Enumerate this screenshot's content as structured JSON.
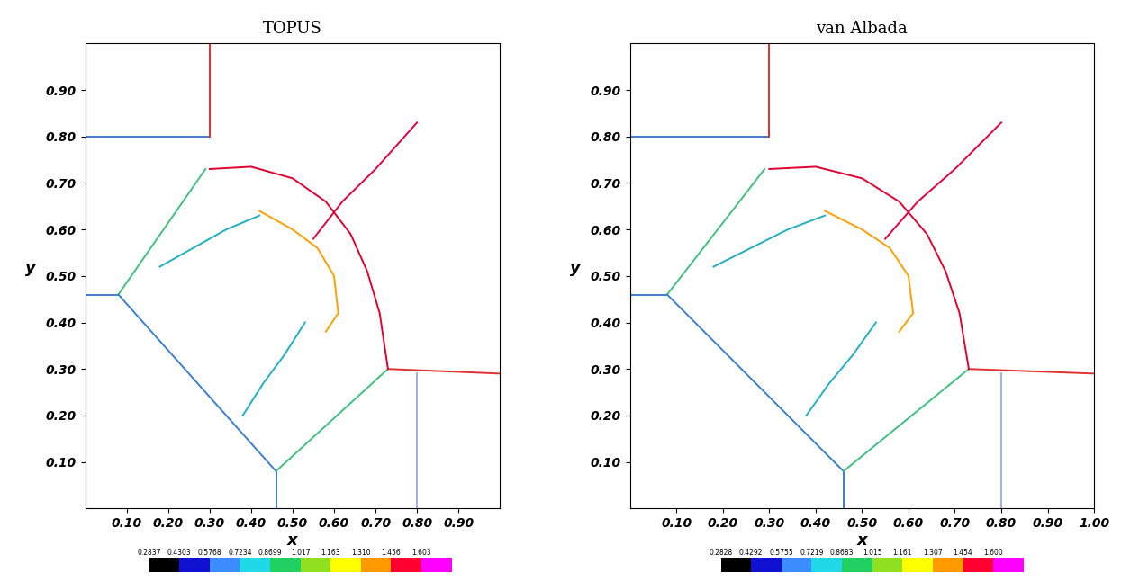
{
  "chart_data": [
    {
      "type": "contour",
      "title": "TOPUS",
      "x_label": "x",
      "y_label": "y",
      "xlim": [
        0,
        1
      ],
      "ylim": [
        0,
        1
      ],
      "xticks": [
        {
          "value": 0.1,
          "label": "0.10"
        },
        {
          "value": 0.2,
          "label": "0.20"
        },
        {
          "value": 0.3,
          "label": "0.30"
        },
        {
          "value": 0.4,
          "label": "0.40"
        },
        {
          "value": 0.5,
          "label": "0.50"
        },
        {
          "value": 0.6,
          "label": "0.60"
        },
        {
          "value": 0.7,
          "label": "0.70"
        },
        {
          "value": 0.8,
          "label": "0.80"
        },
        {
          "value": 0.9,
          "label": "0.90"
        }
      ],
      "yticks": [
        {
          "value": 0.1,
          "label": "0.10"
        },
        {
          "value": 0.2,
          "label": "0.20"
        },
        {
          "value": 0.3,
          "label": "0.30"
        },
        {
          "value": 0.4,
          "label": "0.40"
        },
        {
          "value": 0.5,
          "label": "0.50"
        },
        {
          "value": 0.6,
          "label": "0.60"
        },
        {
          "value": 0.7,
          "label": "0.70"
        },
        {
          "value": 0.8,
          "label": "0.80"
        },
        {
          "value": 0.9,
          "label": "0.90"
        }
      ],
      "colorbar_lim": [
        0.2837,
        1.7496
      ],
      "colorbar_ticks": [
        {
          "value": 0.2837,
          "label": "0.2837"
        },
        {
          "value": 0.4303,
          "label": "0.4303"
        },
        {
          "value": 0.5768,
          "label": "0.5768"
        },
        {
          "value": 0.7234,
          "label": "0.7234"
        },
        {
          "value": 0.8699,
          "label": "0.8699"
        },
        {
          "value": 1.017,
          "label": "1.017"
        },
        {
          "value": 1.163,
          "label": "1.163"
        },
        {
          "value": 1.31,
          "label": "1.310"
        },
        {
          "value": 1.456,
          "label": "1.456"
        },
        {
          "value": 1.603,
          "label": "1.603"
        }
      ],
      "colors": [
        "#000000",
        "#1010d0",
        "#3a8cff",
        "#20d8e8",
        "#20d060",
        "#90e020",
        "#ffff00",
        "#ff9900",
        "#ff0030",
        "#ff00ff"
      ],
      "lines": [
        {
          "x": [
            0.0,
            0.3
          ],
          "y": [
            0.8,
            0.8
          ],
          "color": "#3a7fd0"
        },
        {
          "x": [
            0.3,
            0.3
          ],
          "y": [
            0.8,
            1.0
          ],
          "color": "#e03030"
        },
        {
          "x": [
            0.0,
            0.08
          ],
          "y": [
            0.46,
            0.46
          ],
          "color": "#3a7fd0"
        },
        {
          "x": [
            0.46,
            0.46
          ],
          "y": [
            0.0,
            0.08
          ],
          "color": "#3a7fd0"
        },
        {
          "x": [
            0.8,
            0.8
          ],
          "y": [
            0.0,
            0.29
          ],
          "color": "#a0b0e0"
        },
        {
          "x": [
            0.73,
            1.0
          ],
          "y": [
            0.3,
            0.29
          ],
          "color": "#e03030"
        },
        {
          "x": [
            0.08,
            0.29
          ],
          "y": [
            0.46,
            0.73
          ],
          "color": "#40c080"
        },
        {
          "x": [
            0.08,
            0.46
          ],
          "y": [
            0.46,
            0.08
          ],
          "color": "#3a7fd0"
        },
        {
          "x": [
            0.46,
            0.73
          ],
          "y": [
            0.08,
            0.3
          ],
          "color": "#40c080"
        },
        {
          "x": [
            0.3,
            0.4,
            0.5,
            0.58,
            0.64,
            0.68,
            0.71,
            0.73
          ],
          "y": [
            0.73,
            0.735,
            0.71,
            0.66,
            0.59,
            0.51,
            0.42,
            0.3
          ],
          "color": "#e00030"
        },
        {
          "x": [
            0.55,
            0.62,
            0.7,
            0.77,
            0.8
          ],
          "y": [
            0.58,
            0.66,
            0.73,
            0.8,
            0.83
          ],
          "color": "#e00040"
        },
        {
          "x": [
            0.18,
            0.26,
            0.34,
            0.42
          ],
          "y": [
            0.52,
            0.56,
            0.6,
            0.63
          ],
          "color": "#20b0c0"
        },
        {
          "x": [
            0.38,
            0.43,
            0.48,
            0.53
          ],
          "y": [
            0.2,
            0.27,
            0.33,
            0.4
          ],
          "color": "#20b0c0"
        },
        {
          "x": [
            0.42,
            0.5,
            0.56,
            0.6,
            0.61,
            0.58
          ],
          "y": [
            0.64,
            0.6,
            0.56,
            0.5,
            0.42,
            0.38
          ],
          "color": "#ffa000"
        }
      ]
    },
    {
      "type": "contour",
      "title": "van Albada",
      "x_label": "x",
      "y_label": "y",
      "xlim": [
        0,
        1
      ],
      "ylim": [
        0,
        1
      ],
      "xticks": [
        {
          "value": 0.1,
          "label": "0.10"
        },
        {
          "value": 0.2,
          "label": "0.20"
        },
        {
          "value": 0.3,
          "label": "0.30"
        },
        {
          "value": 0.4,
          "label": "0.40"
        },
        {
          "value": 0.5,
          "label": "0.50"
        },
        {
          "value": 0.6,
          "label": "0.60"
        },
        {
          "value": 0.7,
          "label": "0.70"
        },
        {
          "value": 0.8,
          "label": "0.80"
        },
        {
          "value": 0.9,
          "label": "0.90"
        },
        {
          "value": 1.0,
          "label": "1.00"
        }
      ],
      "yticks": [
        {
          "value": 0.1,
          "label": "0.10"
        },
        {
          "value": 0.2,
          "label": "0.20"
        },
        {
          "value": 0.3,
          "label": "0.30"
        },
        {
          "value": 0.4,
          "label": "0.40"
        },
        {
          "value": 0.5,
          "label": "0.50"
        },
        {
          "value": 0.6,
          "label": "0.60"
        },
        {
          "value": 0.7,
          "label": "0.70"
        },
        {
          "value": 0.8,
          "label": "0.80"
        },
        {
          "value": 0.9,
          "label": "0.90"
        }
      ],
      "colorbar_lim": [
        0.2828,
        1.7464
      ],
      "colorbar_ticks": [
        {
          "value": 0.2828,
          "label": "0.2828"
        },
        {
          "value": 0.4292,
          "label": "0.4292"
        },
        {
          "value": 0.5755,
          "label": "0.5755"
        },
        {
          "value": 0.7219,
          "label": "0.7219"
        },
        {
          "value": 0.8683,
          "label": "0.8683"
        },
        {
          "value": 1.015,
          "label": "1.015"
        },
        {
          "value": 1.161,
          "label": "1.161"
        },
        {
          "value": 1.307,
          "label": "1.307"
        },
        {
          "value": 1.454,
          "label": "1.454"
        },
        {
          "value": 1.6,
          "label": "1.600"
        }
      ],
      "colors": [
        "#000000",
        "#1010d0",
        "#3a8cff",
        "#20d8e8",
        "#20d060",
        "#90e020",
        "#ffff00",
        "#ff9900",
        "#ff0030",
        "#ff00ff"
      ],
      "lines": [
        {
          "x": [
            0.0,
            0.3
          ],
          "y": [
            0.8,
            0.8
          ],
          "color": "#3a7fd0"
        },
        {
          "x": [
            0.3,
            0.3
          ],
          "y": [
            0.8,
            1.0
          ],
          "color": "#e03030"
        },
        {
          "x": [
            0.0,
            0.08
          ],
          "y": [
            0.46,
            0.46
          ],
          "color": "#3a7fd0"
        },
        {
          "x": [
            0.46,
            0.46
          ],
          "y": [
            0.0,
            0.08
          ],
          "color": "#3a7fd0"
        },
        {
          "x": [
            0.8,
            0.8
          ],
          "y": [
            0.0,
            0.29
          ],
          "color": "#a0b0e0"
        },
        {
          "x": [
            0.73,
            1.0
          ],
          "y": [
            0.3,
            0.29
          ],
          "color": "#e03030"
        },
        {
          "x": [
            0.08,
            0.29
          ],
          "y": [
            0.46,
            0.73
          ],
          "color": "#40c080"
        },
        {
          "x": [
            0.08,
            0.46
          ],
          "y": [
            0.46,
            0.08
          ],
          "color": "#3a7fd0"
        },
        {
          "x": [
            0.46,
            0.73
          ],
          "y": [
            0.08,
            0.3
          ],
          "color": "#40c080"
        },
        {
          "x": [
            0.3,
            0.4,
            0.5,
            0.58,
            0.64,
            0.68,
            0.71,
            0.73
          ],
          "y": [
            0.73,
            0.735,
            0.71,
            0.66,
            0.59,
            0.51,
            0.42,
            0.3
          ],
          "color": "#e00030"
        },
        {
          "x": [
            0.55,
            0.62,
            0.7,
            0.77,
            0.8
          ],
          "y": [
            0.58,
            0.66,
            0.73,
            0.8,
            0.83
          ],
          "color": "#e00040"
        },
        {
          "x": [
            0.18,
            0.26,
            0.34,
            0.42
          ],
          "y": [
            0.52,
            0.56,
            0.6,
            0.63
          ],
          "color": "#20b0c0"
        },
        {
          "x": [
            0.38,
            0.43,
            0.48,
            0.53
          ],
          "y": [
            0.2,
            0.27,
            0.33,
            0.4
          ],
          "color": "#20b0c0"
        },
        {
          "x": [
            0.42,
            0.5,
            0.56,
            0.6,
            0.61,
            0.58
          ],
          "y": [
            0.64,
            0.6,
            0.56,
            0.5,
            0.42,
            0.38
          ],
          "color": "#ffa000"
        }
      ]
    }
  ]
}
